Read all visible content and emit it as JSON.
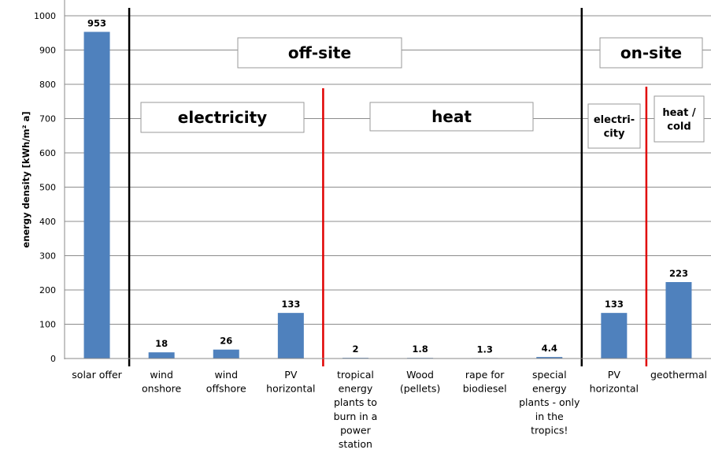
{
  "chart_data": {
    "type": "bar",
    "title": "",
    "xlabel": "",
    "ylabel": "energy density [kWh/m² a]",
    "ylim": [
      0,
      1000
    ],
    "yticks": [
      0,
      100,
      200,
      300,
      400,
      500,
      600,
      700,
      800,
      900,
      1000
    ],
    "grid": true,
    "legend": "none",
    "bar_color": "#4f81bd",
    "categories": [
      [
        "solar offer"
      ],
      [
        "wind",
        "onshore"
      ],
      [
        "wind",
        "offshore"
      ],
      [
        "PV",
        "horizontal"
      ],
      [
        "tropical",
        "energy",
        "plants to",
        "burn in a",
        "power",
        "station"
      ],
      [
        "Wood",
        "(pellets)"
      ],
      [
        "rape for",
        "biodiesel"
      ],
      [
        "special",
        "energy",
        "plants - only",
        "in the",
        "tropics!"
      ],
      [
        "PV",
        "horizontal"
      ],
      [
        "geothermal"
      ]
    ],
    "values": [
      953,
      18,
      26,
      133,
      2,
      1.8,
      1.3,
      4.4,
      133,
      223
    ],
    "data_labels": [
      "953",
      "18",
      "26",
      "133",
      "2",
      "1.8",
      "1.3",
      "4.4",
      "133",
      "223"
    ],
    "annotations": [
      {
        "text": [
          "off-site"
        ]
      },
      {
        "text": [
          "electricity"
        ]
      },
      {
        "text": [
          "heat"
        ]
      },
      {
        "text": [
          "on-site"
        ]
      },
      {
        "text": [
          "electri-",
          "city"
        ]
      },
      {
        "text": [
          "heat /",
          "cold"
        ]
      }
    ],
    "separators": [
      {
        "after_category": 0,
        "color": "#000000"
      },
      {
        "after_category": 3,
        "color": "#e00000"
      },
      {
        "after_category": 7,
        "color": "#000000"
      },
      {
        "after_category": 8,
        "color": "#e00000"
      }
    ]
  }
}
